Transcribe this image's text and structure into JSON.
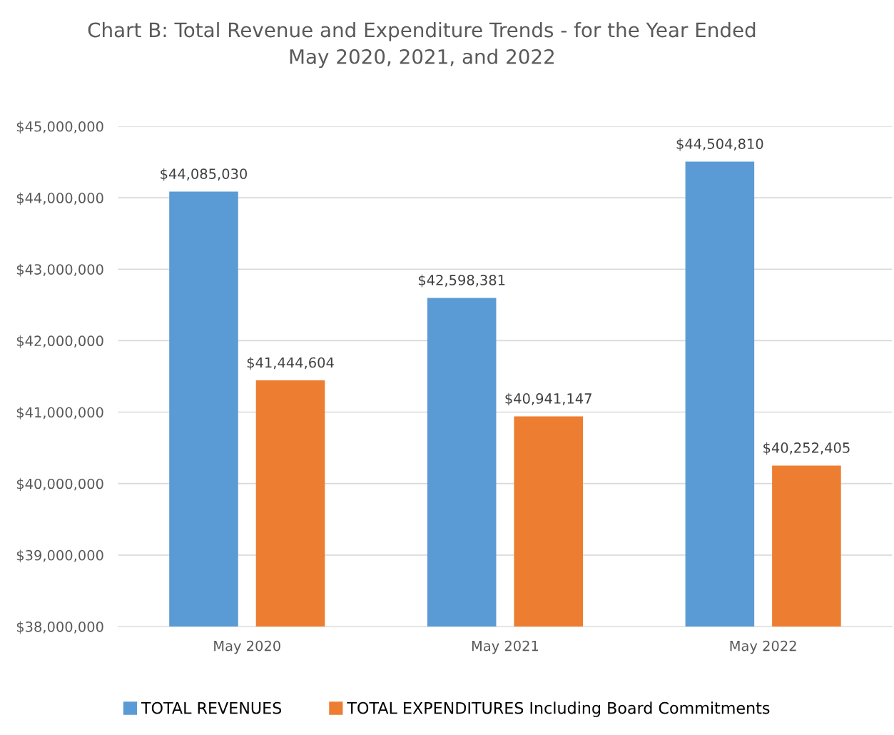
{
  "chart_data": {
    "type": "bar",
    "title": "Chart B: Total Revenue and Expenditure Trends - for the Year Ended\nMay 2020, 2021, and 2022",
    "categories": [
      "May 2020",
      "May 2021",
      "May 2022"
    ],
    "series": [
      {
        "name": "TOTAL REVENUES",
        "color": "#5b9bd5",
        "values": [
          44085030,
          42598381,
          44504810
        ],
        "value_labels": [
          "$44,085,030",
          "$42,598,381",
          "$44,504,810"
        ]
      },
      {
        "name": "TOTAL EXPENDITURES Including Board Commitments",
        "color": "#ed7d31",
        "values": [
          41444604,
          40941147,
          40252405
        ],
        "value_labels": [
          "$41,444,604",
          "$40,941,147",
          "$40,252,405"
        ]
      }
    ],
    "ylim": [
      38000000,
      45000000
    ],
    "yticks": [
      {
        "value": 38000000,
        "label": "$38,000,000"
      },
      {
        "value": 39000000,
        "label": "$39,000,000"
      },
      {
        "value": 40000000,
        "label": "$40,000,000"
      },
      {
        "value": 41000000,
        "label": "$41,000,000"
      },
      {
        "value": 42000000,
        "label": "$42,000,000"
      },
      {
        "value": 43000000,
        "label": "$43,000,000"
      },
      {
        "value": 44000000,
        "label": "$44,000,000"
      },
      {
        "value": 45000000,
        "label": "$45,000,000"
      }
    ],
    "grid": "y",
    "legend": "bottom"
  }
}
